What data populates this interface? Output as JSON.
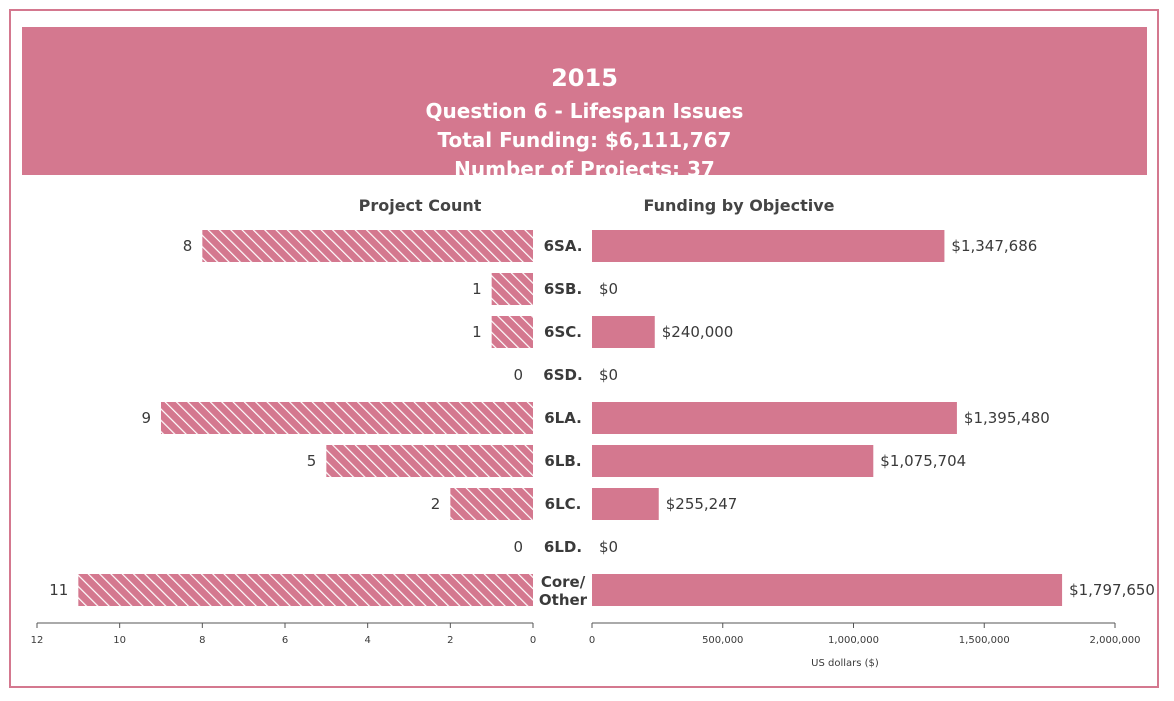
{
  "header": {
    "year": "2015",
    "question": "Question 6 - Lifespan Issues",
    "total_funding": "Total Funding: $6,111,767",
    "num_projects": "Number of Projects: 37"
  },
  "colors": {
    "accent": "#d4788f",
    "text": "#3a3a3a"
  },
  "chart_data": [
    {
      "type": "bar",
      "orientation": "horizontal",
      "direction": "right-to-left",
      "title": "Project Count",
      "categories": [
        "6SA.",
        "6SB.",
        "6SC.",
        "6SD.",
        "6LA.",
        "6LB.",
        "6LC.",
        "6LD.",
        "Core/Other"
      ],
      "values": [
        8,
        1,
        1,
        0,
        9,
        5,
        2,
        0,
        11
      ],
      "value_labels": [
        "8",
        "1",
        "1",
        "0",
        "9",
        "5",
        "2",
        "0",
        "11"
      ],
      "xlim": [
        0,
        12
      ],
      "ticks": [
        0,
        2,
        4,
        6,
        8,
        10,
        12
      ],
      "tick_labels": [
        "0",
        "2",
        "4",
        "6",
        "8",
        "10",
        "12"
      ],
      "fill": "hatched"
    },
    {
      "type": "bar",
      "orientation": "horizontal",
      "title": "Funding by Objective",
      "xlabel": "US dollars ($)",
      "categories": [
        "6SA.",
        "6SB.",
        "6SC.",
        "6SD.",
        "6LA.",
        "6LB.",
        "6LC.",
        "6LD.",
        "Core/Other"
      ],
      "values": [
        1347686,
        0,
        240000,
        0,
        1395480,
        1075704,
        255247,
        0,
        1797650
      ],
      "value_labels": [
        "$1,347,686",
        "$0",
        "$240,000",
        "$0",
        "$1,395,480",
        "$1,075,704",
        "$255,247",
        "$0",
        "$1,797,650"
      ],
      "xlim": [
        0,
        2000000
      ],
      "ticks": [
        0,
        500000,
        1000000,
        1500000,
        2000000
      ],
      "tick_labels": [
        "0",
        "500,000",
        "1,000,000",
        "1,500,000",
        "2,000,000"
      ]
    }
  ]
}
